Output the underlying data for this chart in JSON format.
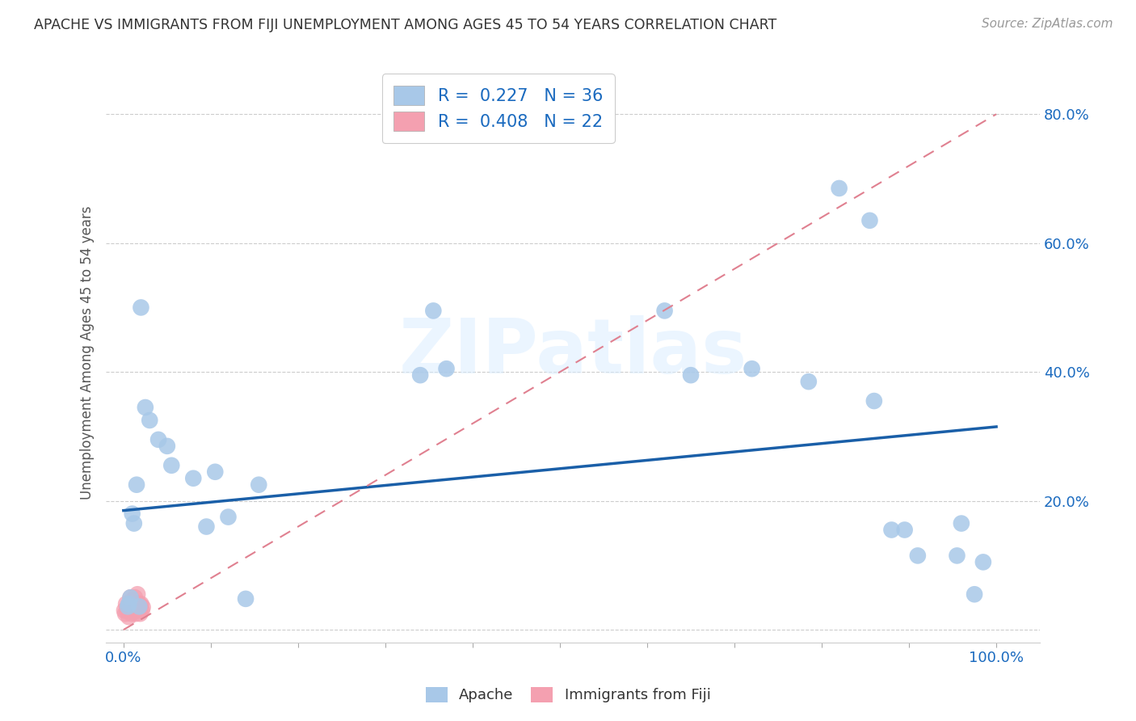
{
  "title": "APACHE VS IMMIGRANTS FROM FIJI UNEMPLOYMENT AMONG AGES 45 TO 54 YEARS CORRELATION CHART",
  "source": "Source: ZipAtlas.com",
  "ylabel": "Unemployment Among Ages 45 to 54 years",
  "xlim": [
    -0.02,
    1.05
  ],
  "ylim": [
    -0.02,
    0.88
  ],
  "xticks": [
    0.0,
    0.1,
    0.2,
    0.3,
    0.4,
    0.5,
    0.6,
    0.7,
    0.8,
    0.9,
    1.0
  ],
  "xticklabels": [
    "0.0%",
    "",
    "",
    "",
    "",
    "",
    "",
    "",
    "",
    "",
    "100.0%"
  ],
  "yticks": [
    0.0,
    0.2,
    0.4,
    0.6,
    0.8
  ],
  "yticklabels": [
    "",
    "20.0%",
    "40.0%",
    "60.0%",
    "80.0%"
  ],
  "apache_R": 0.227,
  "apache_N": 36,
  "fiji_R": 0.408,
  "fiji_N": 22,
  "apache_color": "#a8c8e8",
  "apache_line_color": "#1a5fa8",
  "fiji_color": "#f4a0b0",
  "fiji_line_color": "#e08090",
  "legend_label_color": "#1a6abf",
  "apache_scatter_x": [
    0.02,
    0.01,
    0.012,
    0.015,
    0.005,
    0.006,
    0.008,
    0.018,
    0.025,
    0.03,
    0.04,
    0.05,
    0.055,
    0.08,
    0.095,
    0.105,
    0.12,
    0.14,
    0.155,
    0.34,
    0.355,
    0.62,
    0.65,
    0.72,
    0.785,
    0.82,
    0.855,
    0.86,
    0.88,
    0.895,
    0.91,
    0.955,
    0.96,
    0.975,
    0.985,
    0.37
  ],
  "apache_scatter_y": [
    0.5,
    0.18,
    0.165,
    0.225,
    0.036,
    0.04,
    0.05,
    0.036,
    0.345,
    0.325,
    0.295,
    0.285,
    0.255,
    0.235,
    0.16,
    0.245,
    0.175,
    0.048,
    0.225,
    0.395,
    0.495,
    0.495,
    0.395,
    0.405,
    0.385,
    0.685,
    0.635,
    0.355,
    0.155,
    0.155,
    0.115,
    0.115,
    0.165,
    0.055,
    0.105,
    0.405
  ],
  "fiji_scatter_x": [
    0.001,
    0.002,
    0.003,
    0.004,
    0.005,
    0.006,
    0.007,
    0.008,
    0.009,
    0.01,
    0.011,
    0.012,
    0.013,
    0.014,
    0.015,
    0.016,
    0.017,
    0.018,
    0.019,
    0.02,
    0.021,
    0.022
  ],
  "fiji_scatter_y": [
    0.03,
    0.025,
    0.04,
    0.03,
    0.035,
    0.02,
    0.04,
    0.05,
    0.025,
    0.045,
    0.03,
    0.04,
    0.05,
    0.025,
    0.04,
    0.055,
    0.03,
    0.04,
    0.025,
    0.04,
    0.03,
    0.035
  ],
  "apache_line_x": [
    0.0,
    1.0
  ],
  "apache_line_y": [
    0.185,
    0.315
  ],
  "fiji_line_x": [
    0.0,
    1.0
  ],
  "fiji_line_y": [
    0.0,
    0.8
  ],
  "watermark_text": "ZIPatlas",
  "background_color": "#ffffff",
  "grid_color": "#cccccc"
}
